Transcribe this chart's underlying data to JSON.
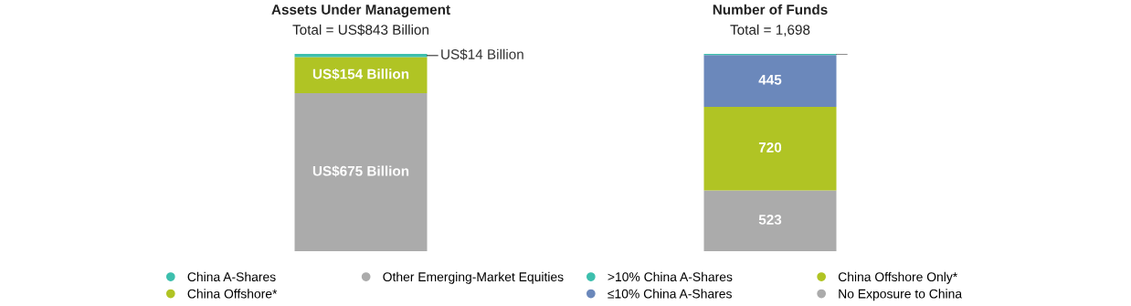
{
  "chart_data": [
    {
      "type": "bar",
      "title": "Assets Under Management",
      "subtitle": "Total = US$843 Billion",
      "stacked": true,
      "categories": [
        null
      ],
      "legend": "bottom",
      "series": [
        {
          "name": "Other Emerging-Market Equities",
          "color": "#ababab",
          "values": [
            675
          ],
          "value_labels": [
            "US$675 Billion"
          ]
        },
        {
          "name": "China Offshore*",
          "color": "#b0c424",
          "values": [
            154
          ],
          "value_labels": [
            "US$154 Billion"
          ]
        },
        {
          "name": "China A-Shares",
          "color": "#3dbfad",
          "values": [
            14
          ],
          "value_labels": [
            "US$14 Billion"
          ]
        }
      ]
    },
    {
      "type": "bar",
      "title": "Number of Funds",
      "subtitle": "Total = 1,698",
      "stacked": true,
      "categories": [
        null
      ],
      "legend": "bottom",
      "series": [
        {
          "name": "No Exposure to China",
          "color": "#ababab",
          "values": [
            523
          ],
          "value_labels": [
            "523"
          ]
        },
        {
          "name": "China Offshore Only*",
          "color": "#b0c424",
          "values": [
            720
          ],
          "value_labels": [
            "720"
          ]
        },
        {
          "name": "≤10% China A-Shares",
          "color": "#6b88bb",
          "values": [
            445
          ],
          "value_labels": [
            "445"
          ]
        },
        {
          "name": ">10% China A-Shares",
          "color": "#3dbfad",
          "values": [
            10
          ],
          "value_labels": [
            null
          ]
        }
      ]
    }
  ]
}
